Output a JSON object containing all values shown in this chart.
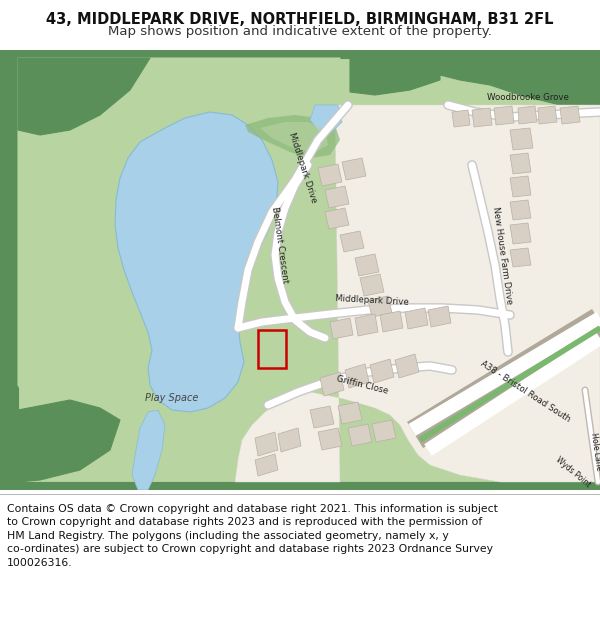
{
  "title_line1": "43, MIDDLEPARK DRIVE, NORTHFIELD, BIRMINGHAM, B31 2FL",
  "title_line2": "Map shows position and indicative extent of the property.",
  "footer_lines": [
    "Contains OS data © Crown copyright and database right 2021. This information is subject to Crown copyright and database rights 2023 and is reproduced with the permission of",
    "HM Land Registry. The polygons (including the associated geometry, namely x, y co-ordinates) are subject to Crown copyright and database rights 2023 Ordnance Survey",
    "100026316."
  ],
  "green_dark": "#5a8f5a",
  "green_light": "#c2d9b0",
  "green_mid": "#8ab87a",
  "green_park": "#b8d4a0",
  "water_color": "#a8d0e8",
  "road_color": "#ffffff",
  "road_edge": "#c8c8c8",
  "building_color": "#d8d0c4",
  "building_stroke": "#b8b0a4",
  "red_rect_color": "#cc0000",
  "map_bg": "#eee8dc",
  "title_fontsize": 10.5,
  "subtitle_fontsize": 9.5,
  "footer_fontsize": 7.8
}
